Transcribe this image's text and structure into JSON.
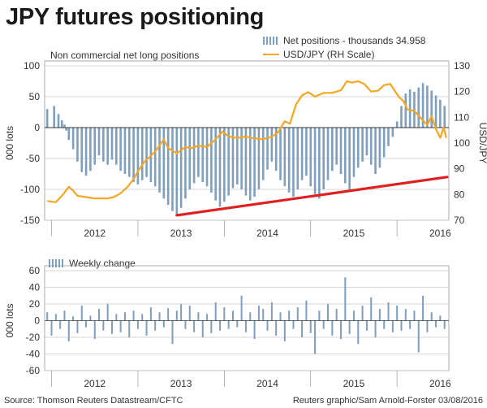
{
  "title": "JPY futures positioning",
  "subtitle": "Non commercial net long positions",
  "footer": {
    "source": "Source: Thomson Reuters Datastream/CFTC",
    "credit": "Reuters graphic/Sam Arnold-Forster 03/08/2016"
  },
  "colors": {
    "bars": "#7e9fbd",
    "line": "#f5a623",
    "trend": "#e02020",
    "grid": "#c8c8c8",
    "zero": "#333333"
  },
  "chart_data": [
    {
      "type": "bar",
      "title": "JPY futures positioning",
      "subtitle": "Non commercial net long positions",
      "ylabel": "000 lots",
      "y2label": "USD/JPY",
      "ylim": [
        -150,
        100
      ],
      "y2lim": [
        70,
        130
      ],
      "yticks": [
        100,
        50,
        0,
        -50,
        -100,
        -150
      ],
      "y2ticks": [
        130,
        120,
        110,
        100,
        90,
        80,
        70
      ],
      "xlim": [
        2011.92,
        2016.6
      ],
      "xticks": [
        "2012",
        "2013",
        "2014",
        "2015",
        "2016"
      ],
      "grid": true,
      "legend": [
        {
          "label": "Net positions - thousands 34.958",
          "kind": "bars"
        },
        {
          "label": "USD/JPY (RH Scale)",
          "kind": "line"
        }
      ],
      "series": [
        {
          "name": "Net positions - thousands 34.958",
          "kind": "bar",
          "points": [
            [
              2011.95,
              30
            ],
            [
              2012.03,
              35
            ],
            [
              2012.08,
              22
            ],
            [
              2012.12,
              12
            ],
            [
              2012.15,
              5
            ],
            [
              2012.17,
              -5
            ],
            [
              2012.2,
              -20
            ],
            [
              2012.25,
              -35
            ],
            [
              2012.3,
              -55
            ],
            [
              2012.35,
              -72
            ],
            [
              2012.4,
              -78
            ],
            [
              2012.45,
              -70
            ],
            [
              2012.5,
              -60
            ],
            [
              2012.55,
              -45
            ],
            [
              2012.6,
              -55
            ],
            [
              2012.65,
              -60
            ],
            [
              2012.7,
              -52
            ],
            [
              2012.75,
              -60
            ],
            [
              2012.8,
              -70
            ],
            [
              2012.85,
              -75
            ],
            [
              2012.9,
              -80
            ],
            [
              2012.95,
              -88
            ],
            [
              2013.0,
              -92
            ],
            [
              2013.05,
              -85
            ],
            [
              2013.1,
              -80
            ],
            [
              2013.15,
              -88
            ],
            [
              2013.2,
              -95
            ],
            [
              2013.25,
              -105
            ],
            [
              2013.3,
              -115
            ],
            [
              2013.35,
              -125
            ],
            [
              2013.4,
              -135
            ],
            [
              2013.45,
              -140
            ],
            [
              2013.5,
              -130
            ],
            [
              2013.55,
              -115
            ],
            [
              2013.6,
              -100
            ],
            [
              2013.65,
              -90
            ],
            [
              2013.7,
              -80
            ],
            [
              2013.75,
              -88
            ],
            [
              2013.8,
              -95
            ],
            [
              2013.85,
              -105
            ],
            [
              2013.9,
              -118
            ],
            [
              2013.95,
              -128
            ],
            [
              2014.0,
              -120
            ],
            [
              2014.05,
              -110
            ],
            [
              2014.1,
              -98
            ],
            [
              2014.15,
              -92
            ],
            [
              2014.2,
              -100
            ],
            [
              2014.25,
              -110
            ],
            [
              2014.3,
              -118
            ],
            [
              2014.35,
              -112
            ],
            [
              2014.4,
              -100
            ],
            [
              2014.45,
              -85
            ],
            [
              2014.5,
              -68
            ],
            [
              2014.55,
              -55
            ],
            [
              2014.6,
              -70
            ],
            [
              2014.65,
              -85
            ],
            [
              2014.7,
              -95
            ],
            [
              2014.75,
              -105
            ],
            [
              2014.8,
              -112
            ],
            [
              2014.85,
              -100
            ],
            [
              2014.9,
              -85
            ],
            [
              2014.95,
              -78
            ],
            [
              2015.0,
              -95
            ],
            [
              2015.05,
              -108
            ],
            [
              2015.1,
              -115
            ],
            [
              2015.15,
              -100
            ],
            [
              2015.2,
              -85
            ],
            [
              2015.25,
              -70
            ],
            [
              2015.3,
              -60
            ],
            [
              2015.35,
              -75
            ],
            [
              2015.4,
              -90
            ],
            [
              2015.45,
              -100
            ],
            [
              2015.5,
              -80
            ],
            [
              2015.55,
              -65
            ],
            [
              2015.6,
              -55
            ],
            [
              2015.65,
              -45
            ],
            [
              2015.7,
              -60
            ],
            [
              2015.75,
              -75
            ],
            [
              2015.8,
              -65
            ],
            [
              2015.85,
              -48
            ],
            [
              2015.9,
              -30
            ],
            [
              2015.95,
              -15
            ],
            [
              2016.0,
              10
            ],
            [
              2016.05,
              35
            ],
            [
              2016.1,
              55
            ],
            [
              2016.15,
              62
            ],
            [
              2016.2,
              58
            ],
            [
              2016.25,
              65
            ],
            [
              2016.3,
              72
            ],
            [
              2016.35,
              68
            ],
            [
              2016.4,
              60
            ],
            [
              2016.45,
              52
            ],
            [
              2016.5,
              45
            ],
            [
              2016.55,
              35
            ]
          ]
        },
        {
          "name": "USD/JPY (RH Scale)",
          "kind": "line",
          "axis": "right",
          "points": [
            [
              2011.95,
              77.5
            ],
            [
              2012.05,
              77
            ],
            [
              2012.12,
              79.5
            ],
            [
              2012.2,
              83
            ],
            [
              2012.25,
              81.5
            ],
            [
              2012.3,
              79.5
            ],
            [
              2012.4,
              79
            ],
            [
              2012.5,
              78.5
            ],
            [
              2012.58,
              78.5
            ],
            [
              2012.65,
              78.5
            ],
            [
              2012.72,
              79
            ],
            [
              2012.8,
              80.5
            ],
            [
              2012.88,
              83
            ],
            [
              2012.95,
              86
            ],
            [
              2013.0,
              89
            ],
            [
              2013.08,
              93
            ],
            [
              2013.15,
              95
            ],
            [
              2013.22,
              97.5
            ],
            [
              2013.3,
              101.5
            ],
            [
              2013.35,
              98
            ],
            [
              2013.45,
              96
            ],
            [
              2013.55,
              98.5
            ],
            [
              2013.62,
              98
            ],
            [
              2013.7,
              99
            ],
            [
              2013.8,
              98.5
            ],
            [
              2013.9,
              101.5
            ],
            [
              2013.98,
              104.5
            ],
            [
              2014.05,
              102.5
            ],
            [
              2014.15,
              102
            ],
            [
              2014.25,
              102.5
            ],
            [
              2014.35,
              101.8
            ],
            [
              2014.45,
              101.5
            ],
            [
              2014.55,
              102.5
            ],
            [
              2014.62,
              104
            ],
            [
              2014.7,
              108.5
            ],
            [
              2014.76,
              107.5
            ],
            [
              2014.83,
              115
            ],
            [
              2014.9,
              118.5
            ],
            [
              2014.97,
              119.8
            ],
            [
              2015.05,
              118
            ],
            [
              2015.15,
              119.5
            ],
            [
              2015.25,
              119.5
            ],
            [
              2015.35,
              120.5
            ],
            [
              2015.42,
              124
            ],
            [
              2015.48,
              123.5
            ],
            [
              2015.55,
              124
            ],
            [
              2015.62,
              123
            ],
            [
              2015.7,
              120
            ],
            [
              2015.78,
              120.3
            ],
            [
              2015.85,
              122.5
            ],
            [
              2015.92,
              123
            ],
            [
              2015.97,
              120.5
            ],
            [
              2016.02,
              118
            ],
            [
              2016.08,
              116
            ],
            [
              2016.12,
              113
            ],
            [
              2016.2,
              112.5
            ],
            [
              2016.28,
              109.5
            ],
            [
              2016.35,
              107
            ],
            [
              2016.4,
              110.5
            ],
            [
              2016.45,
              105.5
            ],
            [
              2016.5,
              102
            ],
            [
              2016.54,
              106
            ],
            [
              2016.57,
              102
            ]
          ]
        },
        {
          "name": "",
          "kind": "trend",
          "points": [
            [
              2013.45,
              -142
            ],
            [
              2016.58,
              -80
            ]
          ]
        }
      ]
    },
    {
      "type": "bar",
      "ylabel": "000 lots",
      "ylim": [
        -60,
        60
      ],
      "yticks": [
        60,
        40,
        20,
        0,
        -20,
        -40,
        -60
      ],
      "xlim": [
        2011.92,
        2016.6
      ],
      "xticks": [
        "2012",
        "2013",
        "2014",
        "2015",
        "2016"
      ],
      "grid": true,
      "legend": [
        {
          "label": "Weekly change",
          "kind": "bars"
        }
      ],
      "series": [
        {
          "name": "Weekly change",
          "kind": "bar",
          "points": [
            [
              2011.95,
              10
            ],
            [
              2012.0,
              -18
            ],
            [
              2012.05,
              8
            ],
            [
              2012.1,
              -10
            ],
            [
              2012.15,
              12
            ],
            [
              2012.2,
              -25
            ],
            [
              2012.25,
              5
            ],
            [
              2012.3,
              -15
            ],
            [
              2012.35,
              18
            ],
            [
              2012.4,
              -8
            ],
            [
              2012.45,
              6
            ],
            [
              2012.5,
              -22
            ],
            [
              2012.55,
              14
            ],
            [
              2012.6,
              -12
            ],
            [
              2012.65,
              20
            ],
            [
              2012.7,
              -16
            ],
            [
              2012.75,
              8
            ],
            [
              2012.8,
              -14
            ],
            [
              2012.85,
              10
            ],
            [
              2012.9,
              -20
            ],
            [
              2012.95,
              12
            ],
            [
              2013.0,
              -10
            ],
            [
              2013.05,
              8
            ],
            [
              2013.1,
              -18
            ],
            [
              2013.15,
              16
            ],
            [
              2013.2,
              -12
            ],
            [
              2013.25,
              10
            ],
            [
              2013.3,
              -8
            ],
            [
              2013.35,
              15
            ],
            [
              2013.4,
              -28
            ],
            [
              2013.45,
              12
            ],
            [
              2013.5,
              20
            ],
            [
              2013.55,
              -10
            ],
            [
              2013.6,
              18
            ],
            [
              2013.65,
              -14
            ],
            [
              2013.7,
              10
            ],
            [
              2013.75,
              -20
            ],
            [
              2013.8,
              8
            ],
            [
              2013.85,
              -15
            ],
            [
              2013.9,
              22
            ],
            [
              2013.95,
              -12
            ],
            [
              2014.0,
              16
            ],
            [
              2014.05,
              -10
            ],
            [
              2014.1,
              12
            ],
            [
              2014.15,
              -8
            ],
            [
              2014.2,
              30
            ],
            [
              2014.25,
              -14
            ],
            [
              2014.3,
              10
            ],
            [
              2014.35,
              -22
            ],
            [
              2014.4,
              18
            ],
            [
              2014.45,
              14
            ],
            [
              2014.5,
              -12
            ],
            [
              2014.55,
              22
            ],
            [
              2014.6,
              -18
            ],
            [
              2014.65,
              10
            ],
            [
              2014.7,
              -25
            ],
            [
              2014.75,
              12
            ],
            [
              2014.8,
              -10
            ],
            [
              2014.85,
              16
            ],
            [
              2014.9,
              -20
            ],
            [
              2014.95,
              24
            ],
            [
              2015.0,
              -15
            ],
            [
              2015.05,
              -40
            ],
            [
              2015.1,
              12
            ],
            [
              2015.15,
              -10
            ],
            [
              2015.2,
              20
            ],
            [
              2015.25,
              -18
            ],
            [
              2015.3,
              14
            ],
            [
              2015.35,
              -22
            ],
            [
              2015.4,
              52
            ],
            [
              2015.45,
              -16
            ],
            [
              2015.5,
              12
            ],
            [
              2015.55,
              -28
            ],
            [
              2015.6,
              18
            ],
            [
              2015.65,
              -12
            ],
            [
              2015.7,
              28
            ],
            [
              2015.75,
              -20
            ],
            [
              2015.8,
              14
            ],
            [
              2015.85,
              -10
            ],
            [
              2015.9,
              22
            ],
            [
              2015.95,
              -14
            ],
            [
              2016.0,
              18
            ],
            [
              2016.05,
              -12
            ],
            [
              2016.1,
              14
            ],
            [
              2016.15,
              -10
            ],
            [
              2016.2,
              12
            ],
            [
              2016.25,
              -38
            ],
            [
              2016.3,
              30
            ],
            [
              2016.35,
              -14
            ],
            [
              2016.4,
              10
            ],
            [
              2016.45,
              -8
            ],
            [
              2016.5,
              6
            ],
            [
              2016.55,
              -10
            ]
          ]
        }
      ]
    }
  ]
}
